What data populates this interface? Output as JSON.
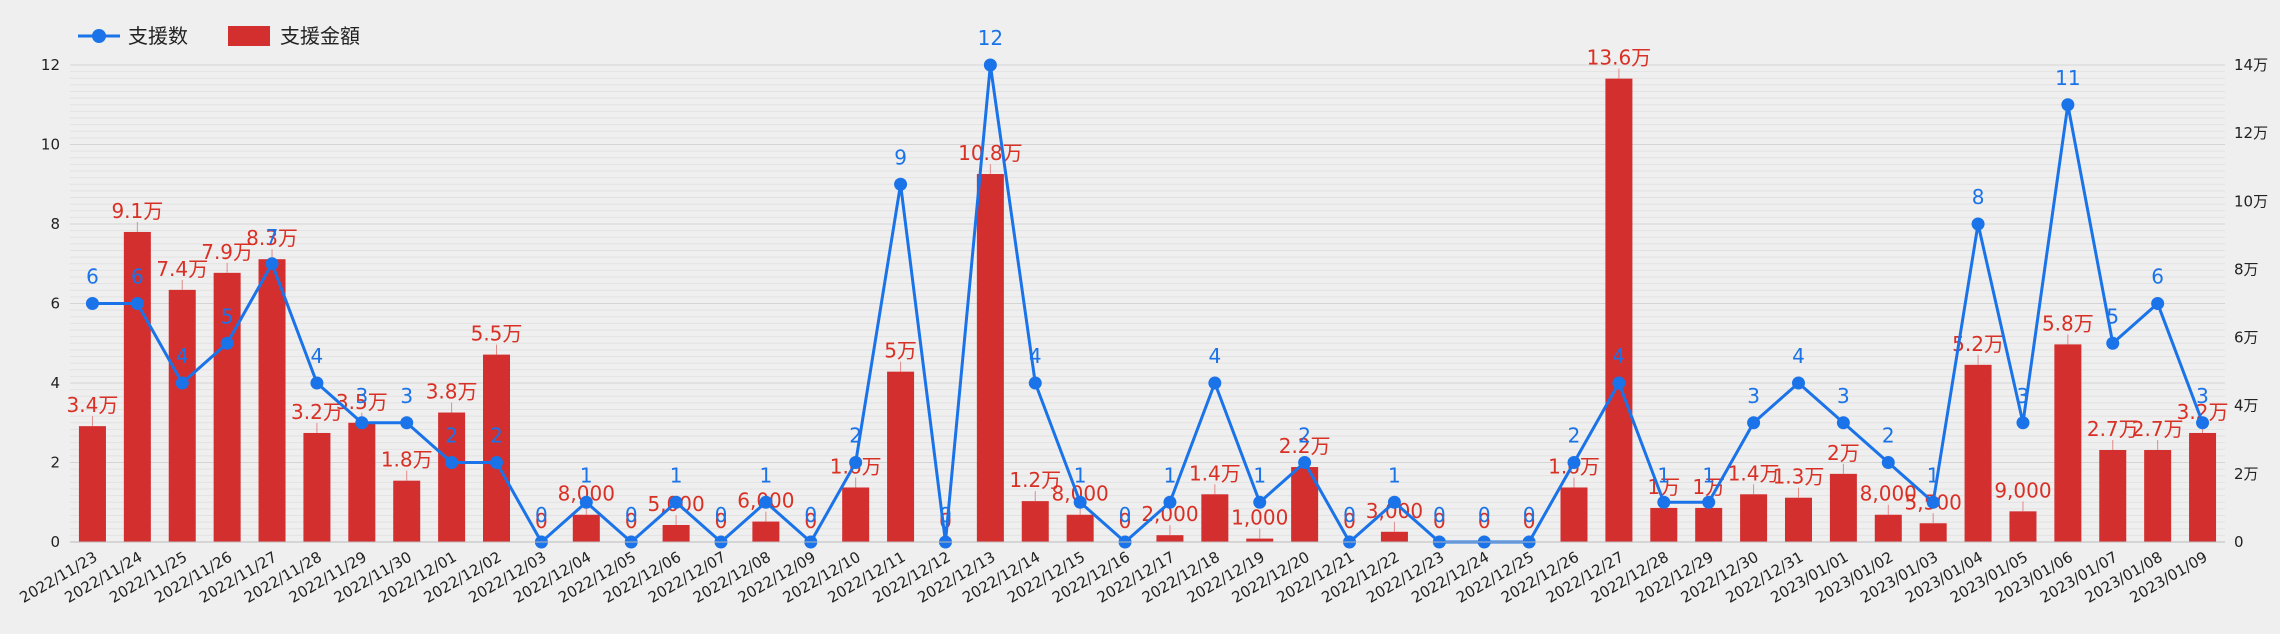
{
  "chart_data": {
    "type": "bar",
    "legend": {
      "position": "top-left",
      "entries": [
        {
          "name": "支援数",
          "kind": "line",
          "color": "#1a73e8"
        },
        {
          "name": "支援金額",
          "kind": "bar",
          "color": "#d32f2f"
        }
      ]
    },
    "grid": true,
    "y_left": {
      "ticks": [
        "0",
        "2",
        "4",
        "6",
        "8",
        "10",
        "12"
      ],
      "range": [
        0,
        12
      ]
    },
    "y_right": {
      "ticks": [
        "0",
        "2万",
        "4万",
        "6万",
        "8万",
        "10万",
        "12万",
        "14万"
      ],
      "range": [
        0,
        140000
      ]
    },
    "categories": [
      "2022/11/23",
      "2022/11/24",
      "2022/11/25",
      "2022/11/26",
      "2022/11/27",
      "2022/11/28",
      "2022/11/29",
      "2022/11/30",
      "2022/12/01",
      "2022/12/02",
      "2022/12/03",
      "2022/12/04",
      "2022/12/05",
      "2022/12/06",
      "2022/12/07",
      "2022/12/08",
      "2022/12/09",
      "2022/12/10",
      "2022/12/11",
      "2022/12/12",
      "2022/12/13",
      "2022/12/14",
      "2022/12/15",
      "2022/12/16",
      "2022/12/17",
      "2022/12/18",
      "2022/12/19",
      "2022/12/20",
      "2022/12/21",
      "2022/12/22",
      "2022/12/23",
      "2022/12/24",
      "2022/12/25",
      "2022/12/26",
      "2022/12/27",
      "2022/12/28",
      "2022/12/29",
      "2022/12/30",
      "2022/12/31",
      "2023/01/01",
      "2023/01/02",
      "2023/01/03",
      "2023/01/04",
      "2023/01/05",
      "2023/01/06",
      "2023/01/07",
      "2023/01/08",
      "2023/01/09"
    ],
    "series": [
      {
        "name": "支援金額",
        "type": "bar",
        "axis": "right",
        "color": "#d32f2f",
        "values": [
          34000,
          91000,
          74000,
          79000,
          83000,
          32000,
          35000,
          18000,
          38000,
          55000,
          0,
          8000,
          0,
          5000,
          0,
          6000,
          0,
          16000,
          50000,
          0,
          108000,
          12000,
          8000,
          0,
          2000,
          14000,
          1000,
          22000,
          0,
          3000,
          0,
          0,
          0,
          16000,
          136000,
          10000,
          10000,
          14000,
          13000,
          20000,
          8000,
          5500,
          52000,
          9000,
          58000,
          27000,
          27000,
          32000
        ],
        "labels": [
          "3.4万",
          "9.1万",
          "7.4万",
          "7.9万",
          "8.3万",
          "3.2万",
          "3.5万",
          "1.8万",
          "3.8万",
          "5.5万",
          "0",
          "8,000",
          "0",
          "5,000",
          "0",
          "6,000",
          "0",
          "1.6万",
          "5万",
          "0",
          "10.8万",
          "1.2万",
          "8,000",
          "0",
          "2,000",
          "1.4万",
          "1,000",
          "2.2万",
          "0",
          "3,000",
          "0",
          "0",
          "0",
          "1.6万",
          "13.6万",
          "1万",
          "1万",
          "1.4万",
          "1.3万",
          "2万",
          "8,000",
          "5,500",
          "5.2万",
          "9,000",
          "5.8万",
          "2.7万",
          "2.7万",
          "3.2万"
        ]
      },
      {
        "name": "支援数",
        "type": "line",
        "axis": "left",
        "color": "#1a73e8",
        "values": [
          6,
          6,
          4,
          5,
          7,
          4,
          3,
          3,
          2,
          2,
          0,
          1,
          0,
          1,
          0,
          1,
          0,
          2,
          9,
          0,
          12,
          4,
          1,
          0,
          1,
          4,
          1,
          2,
          0,
          1,
          0,
          0,
          0,
          2,
          4,
          1,
          1,
          3,
          4,
          3,
          2,
          1,
          8,
          3,
          11,
          5,
          6,
          3
        ]
      }
    ]
  }
}
